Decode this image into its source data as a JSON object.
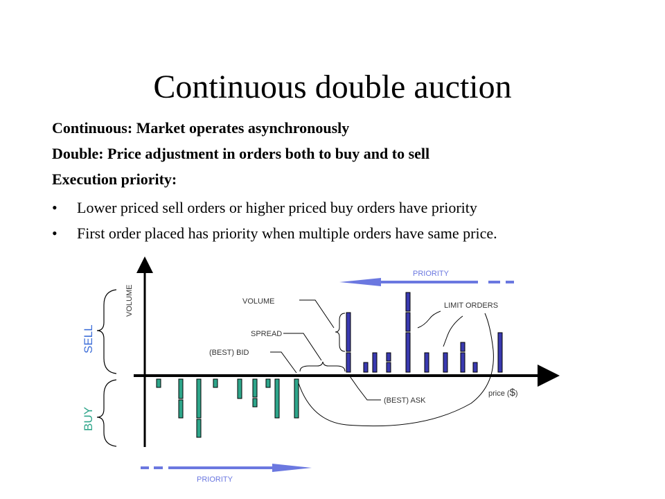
{
  "slide": {
    "title": "Continuous double auction",
    "lines": [
      "Continuous: Market operates asynchronously",
      "Double: Price adjustment in orders both to buy and to sell",
      "Execution priority:"
    ],
    "bullets": [
      "Lower priced sell orders or higher priced buy orders have priority",
      "First order placed has priority when multiple orders have same price."
    ]
  },
  "diagram": {
    "labels": {
      "volume_axis": "VOLUME",
      "volume": "VOLUME",
      "spread": "SPREAD",
      "best_bid": "(BEST) BID",
      "best_ask": "(BEST) ASK",
      "limit_orders": "LIMIT ORDERS",
      "price": "price (",
      "price_symbol": "$",
      "price_close": ")",
      "sell": "SELL",
      "buy": "BUY",
      "priority_top": "PRIORITY",
      "priority_bottom": "PRIORITY"
    },
    "colors": {
      "sell_bar": "#3a3ab0",
      "buy_bar": "#2ea58a",
      "sell_text": "#3f6fd8",
      "buy_text": "#2ea58a",
      "priority_top": "#6b78e0",
      "priority_bottom": "#6b78e0",
      "axis": "#000000"
    },
    "icons": [
      "arrow-left-icon",
      "arrow-right-icon",
      "brace-icon"
    ]
  }
}
